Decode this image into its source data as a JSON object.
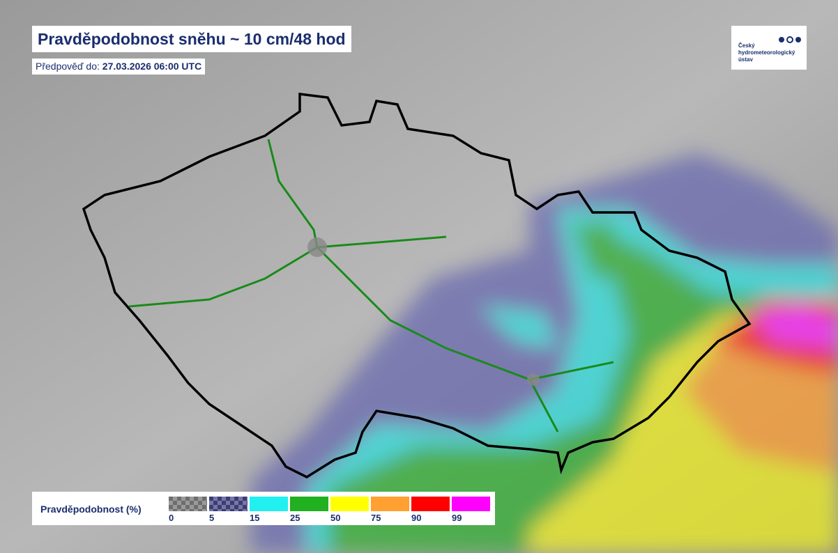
{
  "header": {
    "title": "Pravděpodobnost sněhu ~ 10 cm/48 hod",
    "forecast_label": "Předpověď do:",
    "forecast_time": "27.03.2026 06:00 UTC"
  },
  "logo": {
    "line1": "Český",
    "line2": "hydrometeorologický",
    "line3": "ústav"
  },
  "legend": {
    "title": "Pravděpodobnost (%)",
    "classes": [
      {
        "value": 0,
        "color": "#6e6e6e"
      },
      {
        "value": 5,
        "color": "#3c3c78"
      },
      {
        "value": 15,
        "color": "#22f0f0"
      },
      {
        "value": 25,
        "color": "#20b020"
      },
      {
        "value": 50,
        "color": "#ffff00"
      },
      {
        "value": 75,
        "color": "#ffa030"
      },
      {
        "value": 90,
        "color": "#ff0000"
      },
      {
        "value": 99,
        "color": "#ff00ff"
      }
    ]
  }
}
